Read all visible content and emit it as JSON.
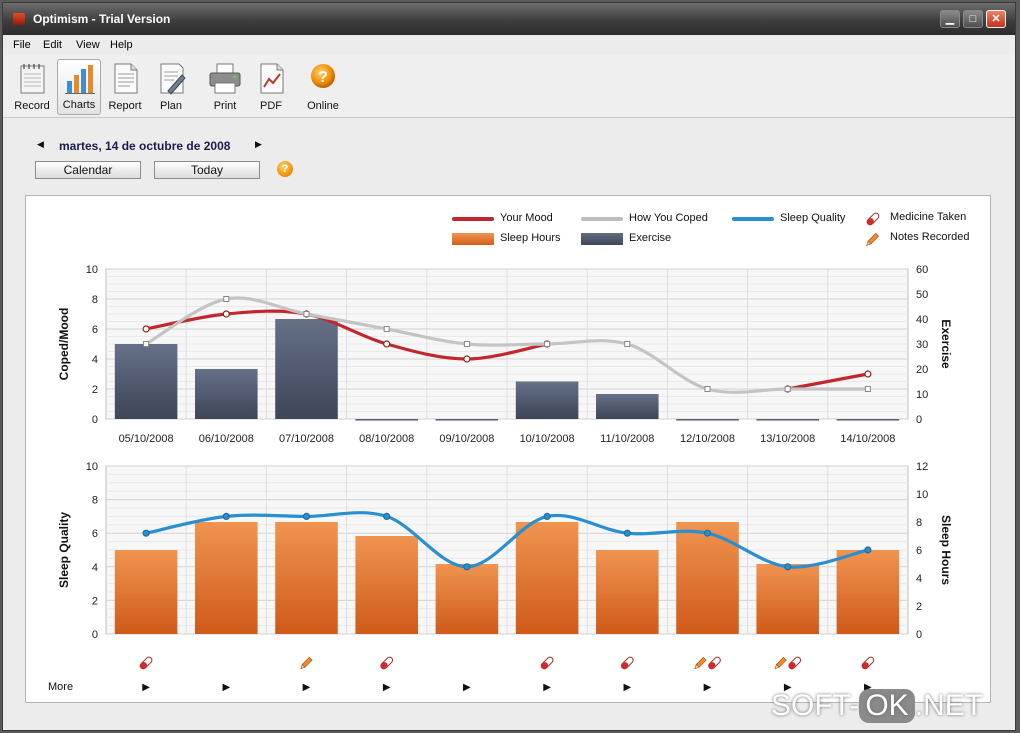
{
  "window": {
    "title": "Optimism - Trial Version",
    "controls": {
      "min": "▁",
      "max": "□",
      "close": "✕"
    }
  },
  "menu": [
    "File",
    "Edit",
    "View",
    "Help"
  ],
  "toolbar": [
    {
      "label": "Record",
      "icon": "notepad-icon"
    },
    {
      "label": "Charts",
      "icon": "bar-chart-icon"
    },
    {
      "label": "Report",
      "icon": "report-icon"
    },
    {
      "label": "Plan",
      "icon": "plan-icon"
    },
    {
      "label": "Print",
      "icon": "printer-icon"
    },
    {
      "label": "PDF",
      "icon": "pdf-icon"
    },
    {
      "label": "Online",
      "icon": "help-icon"
    }
  ],
  "nav": {
    "date": "martes, 14 de octubre de 2008",
    "prev": "◀",
    "next": "▶",
    "calendar_label": "Calendar",
    "today_label": "Today",
    "help": "?"
  },
  "legend": [
    {
      "label": "Your Mood",
      "color": "#c0282d",
      "kind": "line"
    },
    {
      "label": "How You Coped",
      "color": "#bdbdbd",
      "kind": "line"
    },
    {
      "label": "Sleep Quality",
      "color": "#2a8fd0",
      "kind": "line"
    },
    {
      "label": "Medicine Taken",
      "kind": "medicine-icon"
    },
    {
      "label": "Sleep Hours",
      "color": "#e8732c",
      "kind": "bar"
    },
    {
      "label": "Exercise",
      "color": "#4b5468",
      "kind": "bar"
    },
    {
      "label": "Notes Recorded",
      "kind": "pencil-icon"
    }
  ],
  "more_label": "More",
  "more_arrow": "▶",
  "watermark": {
    "left": "SOFT-",
    "mid": "OK",
    "right": ".NET"
  },
  "chart_data": [
    {
      "type": "bar",
      "categories": [
        "05/10/2008",
        "06/10/2008",
        "07/10/2008",
        "08/10/2008",
        "09/10/2008",
        "10/10/2008",
        "11/10/2008",
        "12/10/2008",
        "13/10/2008",
        "14/10/2008"
      ],
      "ylabel": "Coped/Mood",
      "y2label": "Exercise",
      "ylim": [
        0,
        10
      ],
      "y2lim": [
        0,
        60
      ],
      "yticks": [
        "0",
        "2",
        "4",
        "6",
        "8",
        "10"
      ],
      "y2ticks": [
        "0",
        "10",
        "20",
        "30",
        "40",
        "50",
        "60"
      ],
      "grid": true,
      "series": [
        {
          "name": "Exercise",
          "type": "bar",
          "axis": "right",
          "color": "#4b5468",
          "values": [
            30,
            20,
            40,
            0,
            0,
            15,
            10,
            0,
            0,
            0
          ]
        },
        {
          "name": "Your Mood",
          "type": "line",
          "axis": "left",
          "color": "#c0282d",
          "values": [
            6,
            7,
            7,
            5,
            4,
            5,
            null,
            null,
            2,
            3
          ]
        },
        {
          "name": "How You Coped",
          "type": "line",
          "axis": "left",
          "color": "#bdbdbd",
          "values": [
            5,
            8,
            7,
            6,
            5,
            5,
            5,
            2,
            2,
            2
          ]
        }
      ]
    },
    {
      "type": "bar",
      "categories": [
        "05/10/2008",
        "06/10/2008",
        "07/10/2008",
        "08/10/2008",
        "09/10/2008",
        "10/10/2008",
        "11/10/2008",
        "12/10/2008",
        "13/10/2008",
        "14/10/2008"
      ],
      "ylabel": "Sleep Quality",
      "y2label": "Sleep Hours",
      "ylim": [
        0,
        10
      ],
      "y2lim": [
        0,
        12
      ],
      "yticks": [
        "0",
        "2",
        "4",
        "6",
        "8",
        "10"
      ],
      "y2ticks": [
        "0",
        "2",
        "4",
        "6",
        "8",
        "10",
        "12"
      ],
      "grid": true,
      "series": [
        {
          "name": "Sleep Hours",
          "type": "bar",
          "axis": "right",
          "color": "#e8732c",
          "values": [
            6,
            8,
            8,
            7,
            5,
            8,
            6,
            8,
            5,
            6
          ]
        },
        {
          "name": "Sleep Quality",
          "type": "line",
          "axis": "left",
          "color": "#2a8fd0",
          "values": [
            6,
            7,
            7,
            7,
            4,
            7,
            6,
            6,
            4,
            5
          ]
        }
      ],
      "markers": [
        [
          "medicine"
        ],
        [],
        [
          "notes"
        ],
        [
          "medicine"
        ],
        [],
        [
          "medicine"
        ],
        [
          "medicine"
        ],
        [
          "notes",
          "medicine"
        ],
        [
          "notes",
          "medicine"
        ],
        [
          "medicine"
        ]
      ]
    }
  ]
}
